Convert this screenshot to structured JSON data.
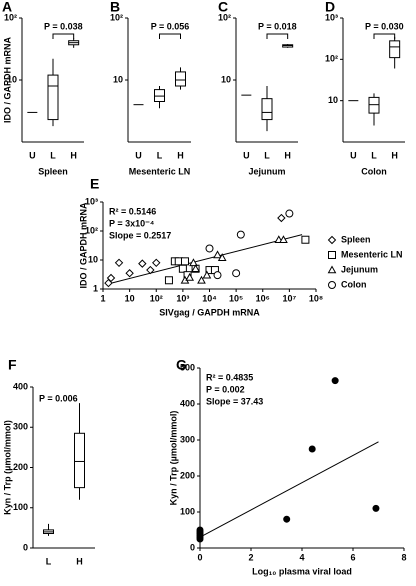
{
  "chart_data": [
    {
      "panel": "A",
      "type": "box",
      "ylabel": "IDO / GAPDH mRNA",
      "xlabel": "Spleen",
      "categories": [
        "U",
        "L",
        "H"
      ],
      "boxes": [
        {
          "median": 3
        },
        {
          "min": 1.8,
          "q1": 2.3,
          "median": 8,
          "q3": 12,
          "max": 22
        },
        {
          "min": 33,
          "q1": 37,
          "median": 40,
          "q3": 43,
          "max": 47
        }
      ],
      "ylim": [
        1,
        100
      ],
      "yticks": [
        10,
        {
          "value": 100,
          "label": "10²"
        }
      ],
      "log_y": true,
      "p_value": "P = 0.038",
      "bracket": true,
      "color": "#000000"
    },
    {
      "panel": "B",
      "type": "box",
      "xlabel": "Mesenteric LN",
      "categories": [
        "U",
        "L",
        "H"
      ],
      "boxes": [
        {
          "median": 4
        },
        {
          "min": 3.5,
          "q1": 4.5,
          "median": 5.5,
          "q3": 7,
          "max": 8
        },
        {
          "min": 7,
          "q1": 8,
          "median": 10,
          "q3": 13.5,
          "max": 16
        }
      ],
      "ylim": [
        1,
        100
      ],
      "yticks": [
        10,
        {
          "value": 100,
          "label": "10²"
        }
      ],
      "log_y": true,
      "p_value": "P = 0.056",
      "bracket": true,
      "color": "#000000"
    },
    {
      "panel": "C",
      "type": "box",
      "xlabel": "Jejunum",
      "categories": [
        "U",
        "L",
        "H"
      ],
      "boxes": [
        {
          "median": 5.7
        },
        {
          "min": 1.5,
          "q1": 2.3,
          "median": 3,
          "q3": 5,
          "max": 8
        },
        {
          "min": 33,
          "q1": 34,
          "median": 36,
          "q3": 37,
          "max": 38
        }
      ],
      "ylim": [
        1,
        100
      ],
      "yticks": [
        10,
        {
          "value": 100,
          "label": "10²"
        }
      ],
      "log_y": true,
      "p_value": "P = 0.018",
      "bracket": true,
      "color": "#000000"
    },
    {
      "panel": "D",
      "type": "box",
      "xlabel": "Colon",
      "categories": [
        "U",
        "L",
        "H"
      ],
      "boxes": [
        {
          "median": 10
        },
        {
          "min": 2.5,
          "q1": 5,
          "median": 8,
          "q3": 12,
          "max": 15
        },
        {
          "min": 60,
          "q1": 110,
          "median": 200,
          "q3": 280,
          "max": 350
        }
      ],
      "ylim": [
        1,
        1000
      ],
      "yticks": [
        10,
        {
          "value": 100,
          "label": "10²"
        },
        {
          "value": 1000,
          "label": "10³"
        }
      ],
      "log_y": true,
      "p_value": "P = 0.030",
      "bracket": true,
      "color": "#000000"
    },
    {
      "panel": "E",
      "type": "scatter",
      "xlabel": "SIVgag / GAPDH mRNA",
      "ylabel": "IDO / GAPDH mRNA",
      "log_x": true,
      "log_y": true,
      "xlim": [
        1,
        100000000
      ],
      "ylim": [
        1,
        1000
      ],
      "xticks": [
        1,
        10,
        {
          "value": 100,
          "label": "10²"
        },
        {
          "value": 1000,
          "label": "10³"
        },
        {
          "value": 10000,
          "label": "10⁴"
        },
        {
          "value": 100000,
          "label": "10⁵"
        },
        {
          "value": 1000000,
          "label": "10⁶"
        },
        {
          "value": 10000000,
          "label": "10⁷"
        },
        {
          "value": 100000000,
          "label": "10⁸"
        }
      ],
      "yticks": [
        1,
        10,
        {
          "value": 100,
          "label": "10²"
        },
        {
          "value": 1000,
          "label": "10³"
        }
      ],
      "annotations": [
        "R² = 0.5146",
        "P = 3x10⁻⁴",
        "Slope = 0.2517"
      ],
      "series": [
        {
          "name": "Spleen",
          "marker": "diamond",
          "color": "#000000",
          "x": [
            1.6,
            2,
            4,
            10,
            30,
            60,
            100,
            5000000
          ],
          "values": [
            1.6,
            2.4,
            8,
            3.5,
            7.5,
            4.5,
            8,
            280
          ]
        },
        {
          "name": "Mesenteric LN",
          "marker": "square",
          "color": "#000000",
          "x": [
            300,
            500,
            700,
            1000,
            1200,
            1500,
            3000,
            10000,
            16000,
            40000000
          ],
          "values": [
            2,
            9,
            9,
            5,
            9,
            3,
            5,
            4.5,
            4.5,
            50
          ]
        },
        {
          "name": "Jejunum",
          "marker": "triangle",
          "color": "#000000",
          "x": [
            1200,
            1800,
            2500,
            3000,
            5000,
            8000,
            20000,
            30000,
            4000000,
            6000000
          ],
          "values": [
            2,
            2.5,
            8,
            5,
            2,
            3,
            15,
            12,
            50,
            50
          ]
        },
        {
          "name": "Colon",
          "marker": "circle",
          "color": "#000000",
          "x": [
            10000,
            20000,
            100000,
            150000,
            10000000
          ],
          "values": [
            25,
            3,
            3.5,
            75,
            400
          ]
        }
      ],
      "trend": {
        "x": [
          1.6,
          30000000
        ],
        "y": [
          1.5,
          75
        ]
      },
      "legend": "right"
    },
    {
      "panel": "F",
      "type": "box",
      "ylabel": "Kyn / Trp (µmol/mmol)",
      "categories": [
        "L",
        "H"
      ],
      "boxes": [
        {
          "min": 30,
          "q1": 36,
          "median": 40,
          "q3": 45,
          "max": 60
        },
        {
          "min": 120,
          "q1": 150,
          "median": 215,
          "q3": 285,
          "max": 360
        }
      ],
      "ylim": [
        0,
        400
      ],
      "yticks": [
        0,
        100,
        200,
        300,
        400
      ],
      "log_y": false,
      "p_value": "P = 0.006",
      "bracket": false,
      "color": "#000000"
    },
    {
      "panel": "G",
      "type": "scatter",
      "xlabel": "Log₁₀ plasma viral load",
      "ylabel": "Kyn / Trp (µmol/mmol)",
      "log_x": false,
      "log_y": false,
      "xlim": [
        0,
        8
      ],
      "ylim": [
        0,
        500
      ],
      "xticks": [
        0,
        2,
        4,
        6,
        8
      ],
      "yticks": [
        0,
        100,
        200,
        300,
        400,
        500
      ],
      "annotations": [
        "R² = 0.4835",
        "P = 0.002",
        "Slope = 37.43"
      ],
      "series": [
        {
          "marker": "dot",
          "color": "#000000",
          "x": [
            0,
            0,
            0,
            0,
            0,
            0,
            3.4,
            4.4,
            5.3,
            6.9
          ],
          "values": [
            25,
            30,
            35,
            40,
            45,
            50,
            80,
            275,
            465,
            110
          ]
        }
      ],
      "trend": {
        "x": [
          0,
          7
        ],
        "y": [
          30,
          295
        ]
      }
    }
  ]
}
